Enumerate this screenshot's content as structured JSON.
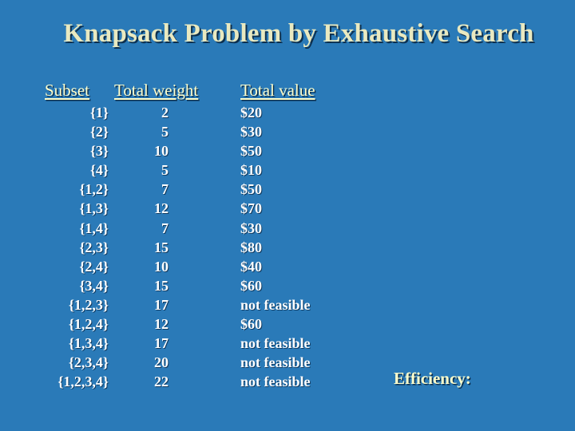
{
  "slide": {
    "title": "Knapsack Problem by Exhaustive Search",
    "headers": {
      "subset": "Subset",
      "weight": "Total weight",
      "value": "Total value"
    },
    "rows": [
      {
        "subset": "{1}",
        "weight": "2",
        "value": "$20"
      },
      {
        "subset": "{2}",
        "weight": "5",
        "value": "$30"
      },
      {
        "subset": "{3}",
        "weight": "10",
        "value": "$50"
      },
      {
        "subset": "{4}",
        "weight": "5",
        "value": "$10"
      },
      {
        "subset": "{1,2}",
        "weight": "7",
        "value": "$50"
      },
      {
        "subset": "{1,3}",
        "weight": "12",
        "value": "$70"
      },
      {
        "subset": "{1,4}",
        "weight": "7",
        "value": "$30"
      },
      {
        "subset": "{2,3}",
        "weight": "15",
        "value": "$80"
      },
      {
        "subset": "{2,4}",
        "weight": "10",
        "value": "$40"
      },
      {
        "subset": "{3,4}",
        "weight": "15",
        "value": "$60"
      },
      {
        "subset": "{1,2,3}",
        "weight": "17",
        "value": "not feasible"
      },
      {
        "subset": "{1,2,4}",
        "weight": "12",
        "value": "$60"
      },
      {
        "subset": "{1,3,4}",
        "weight": "17",
        "value": "not feasible"
      },
      {
        "subset": "{2,3,4}",
        "weight": "20",
        "value": "not feasible"
      },
      {
        "subset": "{1,2,3,4}",
        "weight": "22",
        "value": "not feasible"
      }
    ],
    "efficiency_label": "Efficiency:"
  }
}
